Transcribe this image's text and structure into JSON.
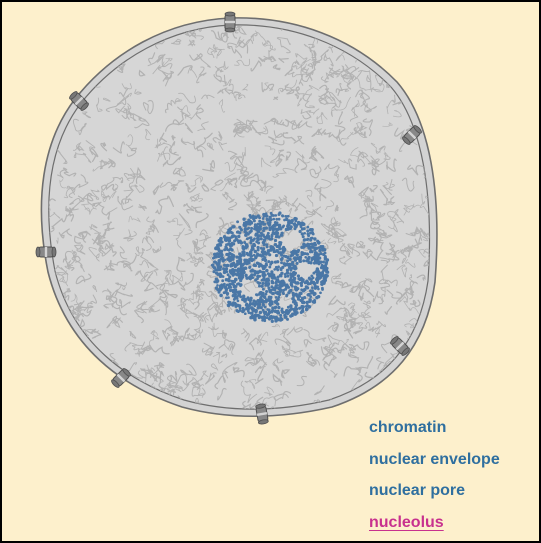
{
  "legend": {
    "items": [
      {
        "id": "chromatin",
        "label": "chromatin",
        "selected": false
      },
      {
        "id": "nuclear-envelope",
        "label": "nuclear envelope",
        "selected": false
      },
      {
        "id": "nuclear-pore",
        "label": "nuclear pore",
        "selected": false
      },
      {
        "id": "nucleolus",
        "label": "nucleolus",
        "selected": true
      }
    ]
  },
  "colors": {
    "background": "#fdf0cc",
    "frame": "#000000",
    "envelope_fill": "#d3d3d3",
    "envelope_stroke": "#6e6e6e",
    "nucleoplasm": "#d6d6d6",
    "chromatin": "#b2b2b2",
    "nucleolus": "#4a77a6",
    "pore": "#888888",
    "label": "#2f6f9f",
    "label_selected": "#c8318e"
  },
  "icons": {
    "nuclear_pore": "nuclear-pore-icon"
  }
}
